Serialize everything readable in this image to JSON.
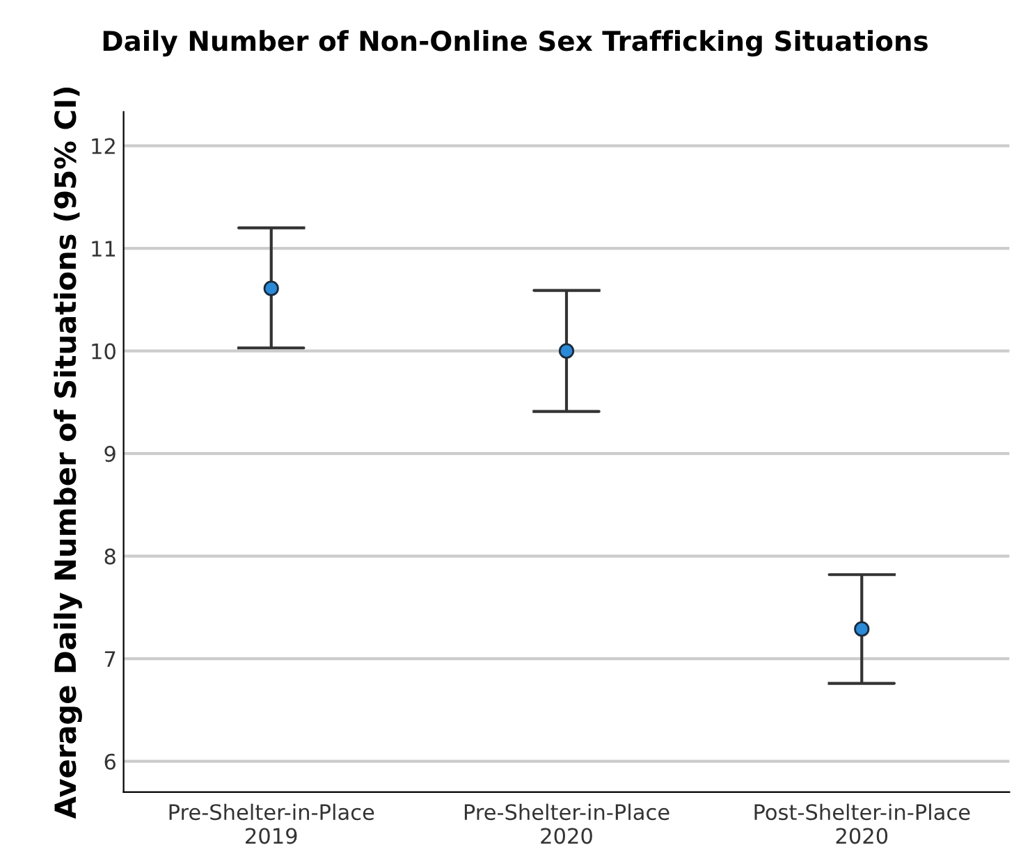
{
  "chart_data": {
    "type": "scatter",
    "title": "Daily Number of Non-Online Sex Trafficking Situations",
    "ylabel": "Average Daily Number of Situations (95% CI)",
    "categories": [
      "Pre-Shelter-in-Place\n2019",
      "Pre-Shelter-in-Place\n2020",
      "Post-Shelter-in-Place\n2020"
    ],
    "values": [
      10.61,
      10.0,
      7.29
    ],
    "errors": [
      [
        10.03,
        11.2
      ],
      [
        9.41,
        10.59
      ],
      [
        6.76,
        7.82
      ]
    ],
    "color": "#2a8ad8",
    "marker": "circle",
    "ylim": [
      5.7,
      12.33
    ],
    "yticks": [
      6,
      7,
      8,
      9,
      10,
      11,
      12
    ],
    "grid": "y"
  }
}
